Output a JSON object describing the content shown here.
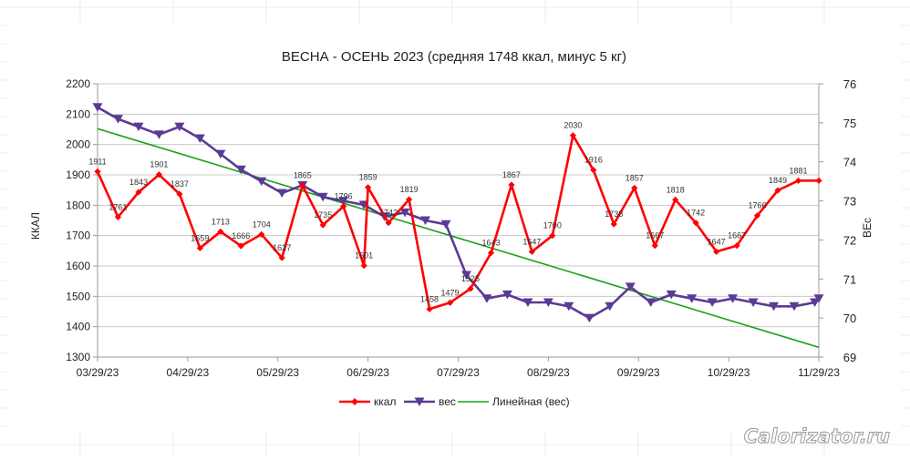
{
  "chart_data": {
    "type": "line",
    "title": "ВЕСНА - ОСЕНЬ 2023 (средняя 1748 ккал, минус 5 кг)",
    "ylabel": "ККАЛ",
    "y2label": "ВЕс",
    "ylim": [
      1300,
      2200
    ],
    "y2lim": [
      69,
      76
    ],
    "y_ticks": [
      "1300",
      "1400",
      "1500",
      "1600",
      "1700",
      "1800",
      "1900",
      "2000",
      "2100",
      "2200"
    ],
    "y2_ticks": [
      "69",
      "70",
      "71",
      "72",
      "73",
      "74",
      "75",
      "76"
    ],
    "x_ticks": [
      "03/29/23",
      "04/29/23",
      "05/29/23",
      "06/29/23",
      "07/29/23",
      "08/29/23",
      "09/29/23",
      "10/29/23",
      "11/29/23"
    ],
    "x_tick_pos": [
      0,
      1,
      2,
      3,
      4,
      5,
      6,
      7,
      8
    ],
    "grid": true,
    "legend_position": "bottom",
    "series": [
      {
        "name": "ккал",
        "axis": "left",
        "color": "#ff0000",
        "marker": "diamond",
        "x": [
          0.0,
          0.227,
          0.455,
          0.682,
          0.909,
          1.136,
          1.364,
          1.591,
          1.818,
          2.045,
          2.273,
          2.5,
          2.727,
          2.955,
          3.0,
          3.227,
          3.455,
          3.682,
          3.909,
          4.136,
          4.364,
          4.591,
          4.818,
          5.045,
          5.273,
          5.5,
          5.727,
          5.955,
          6.182,
          6.409,
          6.636,
          6.864,
          7.091,
          7.318,
          7.545,
          7.773,
          8.0
        ],
        "values": [
          1911,
          1761,
          1843,
          1901,
          1837,
          1659,
          1713,
          1666,
          1704,
          1627,
          1865,
          1735,
          1796,
          1601,
          1859,
          1742,
          1819,
          1458,
          1479,
          1525,
          1643,
          1867,
          1647,
          1700,
          2030,
          1916,
          1738,
          1857,
          1667,
          1818,
          1742,
          1647,
          1667,
          1766,
          1849,
          1881,
          1881
        ],
        "labels": [
          "1911",
          "1761",
          "1843",
          "1901",
          "1837",
          "1659",
          "1713",
          "1666",
          "1704",
          "1627",
          "1865",
          "1735",
          "1796",
          "1601",
          "1859",
          "1742",
          "1819",
          "1458",
          "1479",
          "1525",
          "1643",
          "1867",
          "1647",
          "1700",
          "2030",
          "1916",
          "1738",
          "1857",
          "1667",
          "1818",
          "1742",
          "1647",
          "1667",
          "1766",
          "1849",
          "1881",
          ""
        ]
      },
      {
        "name": "вес",
        "axis": "right",
        "color": "#5a3a96",
        "marker": "triangle-down",
        "x": [
          0.0,
          0.227,
          0.455,
          0.682,
          0.909,
          1.136,
          1.364,
          1.591,
          1.818,
          2.045,
          2.273,
          2.5,
          2.727,
          2.955,
          3.182,
          3.409,
          3.636,
          3.864,
          4.091,
          4.318,
          4.545,
          4.773,
          5.0,
          5.227,
          5.455,
          5.682,
          5.909,
          6.136,
          6.364,
          6.591,
          6.818,
          7.045,
          7.273,
          7.5,
          7.727,
          7.955,
          8.0
        ],
        "values": [
          75.4,
          75.1,
          74.9,
          74.7,
          74.9,
          74.6,
          74.2,
          73.8,
          73.5,
          73.2,
          73.4,
          73.1,
          73.0,
          72.9,
          72.6,
          72.7,
          72.5,
          72.4,
          71.1,
          70.5,
          70.6,
          70.4,
          70.4,
          70.3,
          70.0,
          70.3,
          70.8,
          70.4,
          70.6,
          70.5,
          70.4,
          70.5,
          70.4,
          70.3,
          70.3,
          70.4,
          70.5
        ]
      },
      {
        "name": "Линейная (вес)",
        "axis": "right",
        "color": "#1aa01a",
        "marker": "none",
        "x": [
          0,
          8
        ],
        "values": [
          74.85,
          69.25
        ]
      }
    ]
  },
  "watermark": "Calorizator.ru"
}
